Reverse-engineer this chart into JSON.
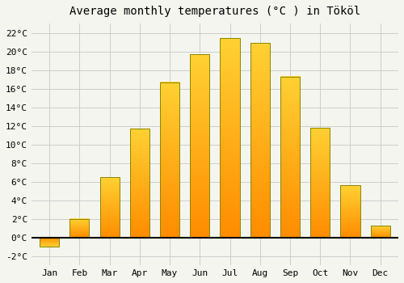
{
  "title": "Average monthly temperatures (°C ) in Tököl",
  "months": [
    "Jan",
    "Feb",
    "Mar",
    "Apr",
    "May",
    "Jun",
    "Jul",
    "Aug",
    "Sep",
    "Oct",
    "Nov",
    "Dec"
  ],
  "values": [
    -1.0,
    2.0,
    6.5,
    11.7,
    16.7,
    19.7,
    21.4,
    20.9,
    17.3,
    11.8,
    5.6,
    1.3
  ],
  "bar_color_top": "#FFB300",
  "bar_color_bottom": "#FF8C00",
  "bar_edge_color": "#888800",
  "ylim": [
    -3,
    23
  ],
  "yticks": [
    -2,
    0,
    2,
    4,
    6,
    8,
    10,
    12,
    14,
    16,
    18,
    20,
    22
  ],
  "ytick_labels": [
    "-2°C",
    "0°C",
    "2°C",
    "4°C",
    "6°C",
    "8°C",
    "10°C",
    "12°C",
    "14°C",
    "16°C",
    "18°C",
    "20°C",
    "22°C"
  ],
  "background_color": "#f5f5f0",
  "plot_bg_color": "#f5f5f0",
  "grid_color": "#cccccc",
  "font_family": "monospace",
  "title_fontsize": 10,
  "bar_width": 0.65
}
